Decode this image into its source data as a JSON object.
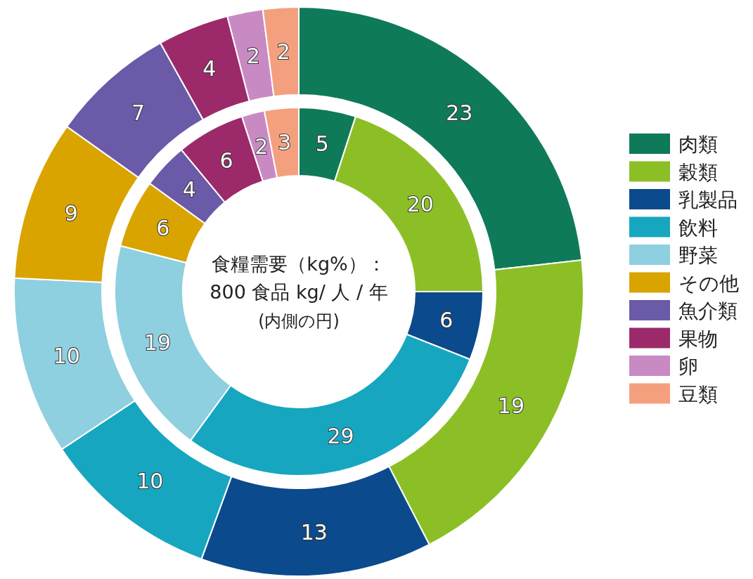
{
  "chart_data": {
    "type": "donut",
    "title": "食糧需要（kg%）：",
    "subtitle": "800 食品 kg/ 人 / 年",
    "annotations": [
      "(内側の円)"
    ],
    "categories": [
      "肉類",
      "穀類",
      "乳製品",
      "飲料",
      "野菜",
      "その他",
      "魚介類",
      "果物",
      "卵",
      "豆類"
    ],
    "colors": [
      "#0f7a5a",
      "#8cbf26",
      "#0b4a8c",
      "#17a6c0",
      "#8ecfe0",
      "#d9a400",
      "#6a5aa8",
      "#9c2a6a",
      "#c98ac4",
      "#f4a07e"
    ],
    "series": [
      {
        "values": [
          5,
          20,
          6,
          29,
          19,
          6,
          4,
          6,
          2,
          3
        ]
      },
      {
        "values": [
          23,
          19,
          13,
          10,
          10,
          9,
          7,
          4,
          2,
          2
        ]
      }
    ],
    "data_labels": true,
    "legend": "right"
  }
}
